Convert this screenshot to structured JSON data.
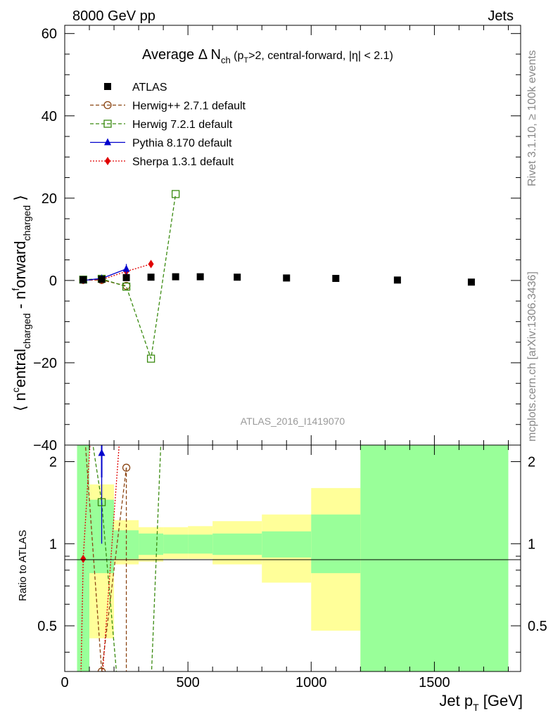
{
  "header": {
    "left": "8000 GeV pp",
    "right": "Jets"
  },
  "side_labels": {
    "rivet": "Rivet 3.1.10, ≥ 100k events",
    "mcplots": "mcplots.cern.ch [arXiv:1306.3436]"
  },
  "colors": {
    "atlas": "#000000",
    "herwigpp": "#8b4513",
    "herwig7": "#3a8a10",
    "pythia": "#0000cc",
    "sherpa": "#e00000",
    "band_inner": "#99ff99",
    "band_outer": "#ffff99"
  },
  "chart_data": {
    "type": "scatter",
    "title": "Average Δ N_ch (p_T>2, central-forward, |η| < 2.1)",
    "title_parts": {
      "main": "Average Δ N",
      "sub1": "ch",
      "paren_a": " (p",
      "sub2": "T",
      "paren_b": ">2, central-forward, |η| < 2.1)"
    },
    "ylabel_parts": {
      "a": "⟨ n",
      "sup1": "c",
      "b": "entral",
      "sub1": "charged",
      "c": " - n",
      "sup2": "f",
      "d": "orward",
      "sub2": "charged",
      "e": " ⟩"
    },
    "xlabel_parts": {
      "a": "Jet p",
      "sub": "T",
      "b": " [GeV]"
    },
    "ratio_ylabel": "Ratio to ATLAS",
    "analysis_id": "ATLAS_2016_I1419070",
    "xlim": [
      0,
      1850
    ],
    "ylim": [
      -40,
      62
    ],
    "ratio_ylim": [
      0.34,
      2.3
    ],
    "xticks": [
      0,
      500,
      1000,
      1500
    ],
    "yticks": [
      -40,
      -20,
      0,
      20,
      40,
      60
    ],
    "ratio_yticks": [
      0.5,
      1,
      2
    ],
    "legend_position": "top-left",
    "grid": false,
    "series": [
      {
        "name": "ATLAS",
        "key": "atlas",
        "marker": "filled-square",
        "line": "none",
        "x": [
          75,
          150,
          250,
          350,
          450,
          550,
          700,
          900,
          1100,
          1350,
          1650
        ],
        "y": [
          0.2,
          0.3,
          0.7,
          0.8,
          0.9,
          0.9,
          0.8,
          0.6,
          0.5,
          0.1,
          -0.4
        ]
      },
      {
        "name": "Herwig++ 2.7.1 default",
        "key": "herwigpp",
        "marker": "open-circle",
        "line": "dashed",
        "x": [
          75,
          150,
          250
        ],
        "y": [
          0.1,
          0.1,
          -1.3
        ],
        "ratio": [
          null,
          0.34,
          1.9
        ]
      },
      {
        "name": "Herwig 7.2.1 default",
        "key": "herwig7",
        "marker": "open-square",
        "line": "dashed",
        "x": [
          75,
          150,
          250,
          350,
          450
        ],
        "y": [
          0.2,
          0.4,
          -1.5,
          -19,
          21
        ],
        "ratio": [
          null,
          1.42,
          null,
          null,
          null
        ]
      },
      {
        "name": "Pythia 8.170 default",
        "key": "pythia",
        "marker": "filled-triangle",
        "line": "solid",
        "x": [
          75,
          150,
          250
        ],
        "y": [
          0.0,
          0.5,
          2.8
        ],
        "yerr": [
          0.3,
          0.3,
          1.2
        ],
        "ratio": [
          null,
          2.15,
          null
        ]
      },
      {
        "name": "Sherpa 1.3.1 default",
        "key": "sherpa",
        "marker": "filled-diamond",
        "line": "dotted",
        "x": [
          75,
          150,
          250,
          350
        ],
        "y": [
          0.1,
          0.2,
          2.2,
          4.0
        ],
        "ratio": [
          0.88,
          null,
          null,
          null
        ]
      }
    ],
    "ratio_bands": [
      {
        "x0": 50,
        "x1": 100,
        "inner": [
          0.34,
          2.3
        ],
        "outer": [
          0.34,
          2.3
        ]
      },
      {
        "x0": 100,
        "x1": 200,
        "inner": [
          0.78,
          1.45
        ],
        "outer": [
          0.45,
          1.65
        ]
      },
      {
        "x0": 200,
        "x1": 300,
        "inner": [
          0.88,
          1.12
        ],
        "outer": [
          0.84,
          1.22
        ]
      },
      {
        "x0": 300,
        "x1": 400,
        "inner": [
          0.91,
          1.09
        ],
        "outer": [
          0.86,
          1.15
        ]
      },
      {
        "x0": 400,
        "x1": 500,
        "inner": [
          0.92,
          1.08
        ],
        "outer": [
          0.88,
          1.15
        ]
      },
      {
        "x0": 500,
        "x1": 600,
        "inner": [
          0.92,
          1.08
        ],
        "outer": [
          0.88,
          1.16
        ]
      },
      {
        "x0": 600,
        "x1": 800,
        "inner": [
          0.91,
          1.09
        ],
        "outer": [
          0.84,
          1.21
        ]
      },
      {
        "x0": 800,
        "x1": 1000,
        "inner": [
          0.89,
          1.11
        ],
        "outer": [
          0.72,
          1.28
        ]
      },
      {
        "x0": 1000,
        "x1": 1200,
        "inner": [
          0.78,
          1.28
        ],
        "outer": [
          0.48,
          1.6
        ]
      },
      {
        "x0": 1200,
        "x1": 1800,
        "inner": [
          0.34,
          2.3
        ],
        "outer": [
          0.34,
          2.3
        ]
      }
    ]
  }
}
